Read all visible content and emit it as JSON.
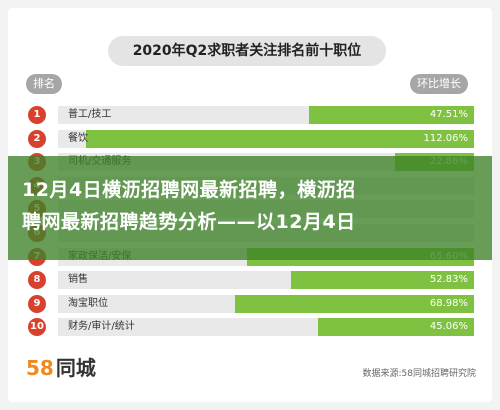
{
  "header": {
    "rank_label": "排名",
    "growth_label": "环比增长"
  },
  "banner": {
    "line1": "12月4日横沥招聘网最新招聘，横沥招",
    "line2": "聘网最新招聘趋势分析——以12月4日"
  },
  "footer": {
    "logo_number": "58",
    "logo_text": "同城",
    "source": "数据来源:58同城招聘研究院"
  },
  "colors": {
    "bar": "#7fc241",
    "track": "#e9e9e9",
    "badge": "#d9412f",
    "banner": "#3c8228"
  },
  "chart_data": {
    "type": "bar",
    "title": "2020年Q2求职者关注排名前十职位",
    "categories": [
      "普工/技工",
      "餐饮",
      "司机/交通服务",
      "",
      "",
      "",
      "家政保洁/安保",
      "销售",
      "淘宝职位",
      "财务/审计/统计"
    ],
    "ranks": [
      "1",
      "2",
      "3",
      "4",
      "5",
      "6",
      "7",
      "8",
      "9",
      "10"
    ],
    "values": [
      47.51,
      112.06,
      22.86,
      null,
      null,
      null,
      65.6,
      52.83,
      68.98,
      45.06
    ],
    "value_labels": [
      "47.51%",
      "112.06%",
      "22.86%",
      "",
      "",
      "",
      "65.60%",
      "52.83%",
      "68.98%",
      "45.06%"
    ],
    "orientation": "horizontal",
    "xlim": [
      0,
      120
    ],
    "unit": "%"
  }
}
